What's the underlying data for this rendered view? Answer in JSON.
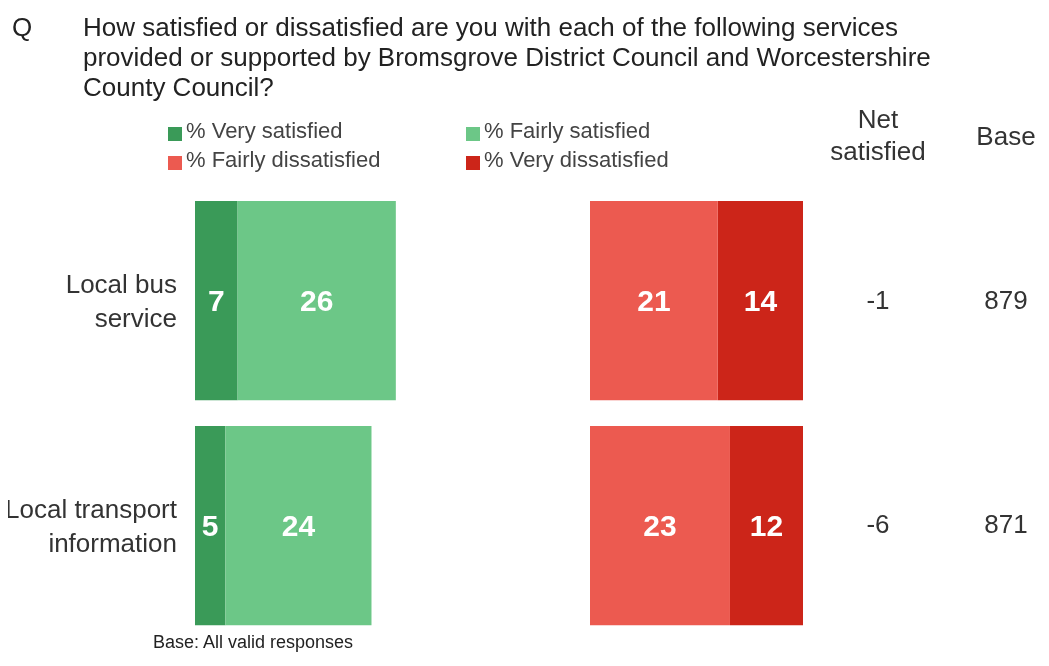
{
  "chart_data": [
    {
      "type": "bar",
      "orientation": "horizontal",
      "stacked": true,
      "title": "How satisfied or dissatisfied are you with each of the following services provided or supported by Bromsgrove District Council and Worcestershire County Council?",
      "categories": [
        "Local bus service",
        "Local transport information"
      ],
      "series": [
        {
          "name": "% Very satisfied",
          "color": "#3a9a58",
          "values": [
            7,
            5
          ]
        },
        {
          "name": "% Fairly satisfied",
          "color": "#6cc787",
          "values": [
            26,
            24
          ]
        }
      ],
      "data_labels": true,
      "legend": "top",
      "tick_labels": "y",
      "annotations": [
        "Q",
        "Base: All valid responses"
      ]
    },
    {
      "type": "bar",
      "orientation": "horizontal",
      "stacked": true,
      "categories": [
        null,
        null
      ],
      "series": [
        {
          "name": "% Very dissatisfied",
          "color": "#cc2519",
          "values": [
            14,
            12
          ]
        },
        {
          "name": "% Fairly dissatisfied",
          "color": "#ec5a50",
          "values": [
            21,
            23
          ]
        }
      ],
      "data_labels": true,
      "legend": "top",
      "tick_labels": false,
      "annotations": [
        "Net satisfied",
        "Base",
        "-1",
        "879",
        "-6",
        "871"
      ]
    }
  ]
}
